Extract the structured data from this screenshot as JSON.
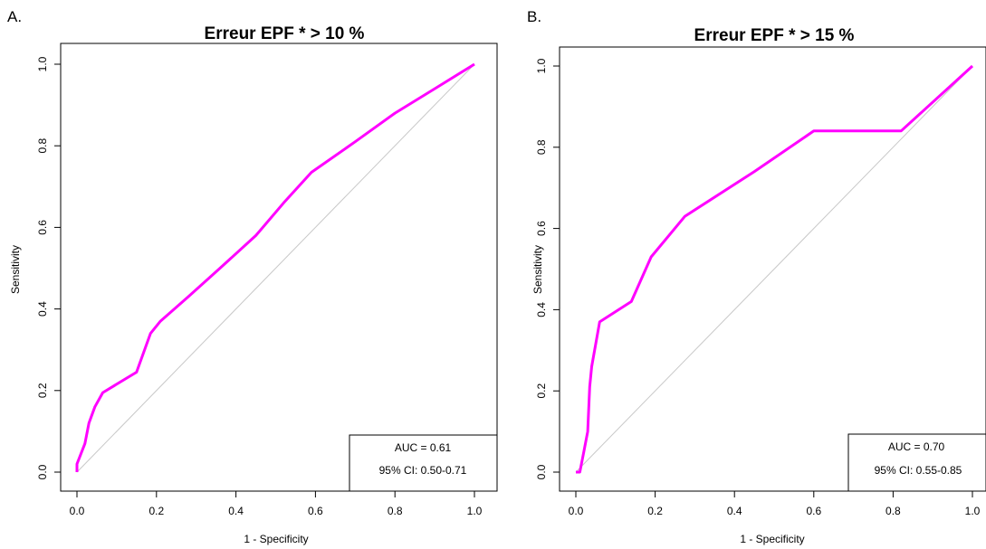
{
  "colors": {
    "curve": "#ff00ff",
    "diagonal": "#c8c8c8",
    "frame": "#000000"
  },
  "chart_data": [
    {
      "type": "line",
      "panel_label": "A.",
      "title": "Erreur EPF * > 10 %",
      "xlabel": "1 - Specificity",
      "ylabel": "Sensitivity",
      "xlim": [
        0,
        1
      ],
      "ylim": [
        0,
        1
      ],
      "xticks": [
        "0.0",
        "0.2",
        "0.4",
        "0.6",
        "0.8",
        "1.0"
      ],
      "yticks": [
        "0.0",
        "0.2",
        "0.4",
        "0.6",
        "0.8",
        "1.0"
      ],
      "reference_line": [
        [
          0,
          0
        ],
        [
          1,
          1
        ]
      ],
      "series": [
        {
          "x": [
            0.0,
            0.0,
            0.02,
            0.03,
            0.045,
            0.065,
            0.15,
            0.185,
            0.21,
            0.28,
            0.36,
            0.45,
            0.52,
            0.59,
            0.7,
            0.8,
            0.9,
            1.0
          ],
          "y": [
            0.0,
            0.02,
            0.07,
            0.12,
            0.16,
            0.195,
            0.245,
            0.34,
            0.37,
            0.43,
            0.5,
            0.58,
            0.66,
            0.735,
            0.81,
            0.88,
            0.94,
            1.0
          ]
        }
      ],
      "legend_position": "bottom-right",
      "legend": [
        "AUC = 0.61",
        "95% CI: 0.50-0.71"
      ]
    },
    {
      "type": "line",
      "panel_label": "B.",
      "title": "Erreur EPF * > 15 %",
      "xlabel": "1 - Specificity",
      "ylabel": "Sensitivity",
      "xlim": [
        0,
        1
      ],
      "ylim": [
        0,
        1
      ],
      "xticks": [
        "0.0",
        "0.2",
        "0.4",
        "0.6",
        "0.8",
        "1.0"
      ],
      "yticks": [
        "0.0",
        "0.2",
        "0.4",
        "0.6",
        "0.8",
        "1.0"
      ],
      "reference_line": [
        [
          0,
          0
        ],
        [
          1,
          1
        ]
      ],
      "series": [
        {
          "x": [
            0.0,
            0.01,
            0.02,
            0.03,
            0.035,
            0.04,
            0.06,
            0.14,
            0.19,
            0.275,
            0.45,
            0.6,
            0.82,
            1.0
          ],
          "y": [
            0.0,
            0.0,
            0.05,
            0.1,
            0.21,
            0.26,
            0.37,
            0.42,
            0.53,
            0.63,
            0.74,
            0.84,
            0.84,
            1.0
          ]
        }
      ],
      "legend_position": "bottom-right",
      "legend": [
        "AUC = 0.70",
        "95% CI: 0.55-0.85"
      ]
    }
  ]
}
